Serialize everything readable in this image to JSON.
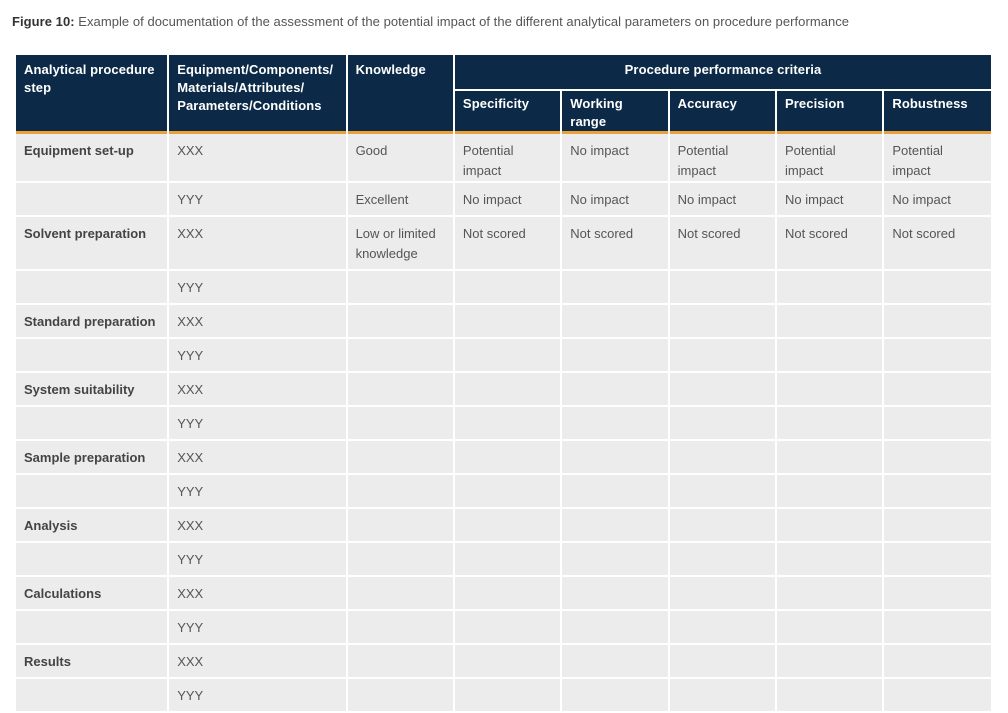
{
  "caption": {
    "lead": "Figure 10:",
    "text": " Example of documentation of the assessment of the potential impact of the different analytical parameters on procedure performance"
  },
  "headers": {
    "step": "Analytical procedure step",
    "equipment": "Equipment/Components/ Materials/Attributes/ Parameters/Conditions",
    "knowledge": "Knowledge",
    "group": "Procedure performance criteria",
    "criteria": [
      "Specificity",
      "Working range",
      "Accuracy",
      "Precision",
      "Robustness"
    ]
  },
  "rows": [
    {
      "step": "Equipment set-up",
      "items": [
        {
          "equip": "XXX",
          "knowledge": "Good",
          "scores": [
            "Potential impact",
            "No impact",
            "Potential impact",
            "Potential impact",
            "Potential impact"
          ]
        },
        {
          "equip": "YYY",
          "knowledge": "Excellent",
          "scores": [
            "No impact",
            "No impact",
            "No impact",
            "No impact",
            "No impact"
          ]
        }
      ]
    },
    {
      "step": "Solvent preparation",
      "items": [
        {
          "equip": "XXX",
          "knowledge": "Low or limited knowledge",
          "scores": [
            "Not scored",
            "Not scored",
            "Not scored",
            "Not scored",
            "Not scored"
          ]
        },
        {
          "equip": "YYY",
          "knowledge": "",
          "scores": [
            "",
            "",
            "",
            "",
            ""
          ]
        }
      ]
    },
    {
      "step": "Standard preparation",
      "items": [
        {
          "equip": "XXX",
          "knowledge": "",
          "scores": [
            "",
            "",
            "",
            "",
            ""
          ]
        },
        {
          "equip": "YYY",
          "knowledge": "",
          "scores": [
            "",
            "",
            "",
            "",
            ""
          ]
        }
      ]
    },
    {
      "step": "System suitability",
      "items": [
        {
          "equip": "XXX",
          "knowledge": "",
          "scores": [
            "",
            "",
            "",
            "",
            ""
          ]
        },
        {
          "equip": "YYY",
          "knowledge": "",
          "scores": [
            "",
            "",
            "",
            "",
            ""
          ]
        }
      ]
    },
    {
      "step": "Sample preparation",
      "items": [
        {
          "equip": "XXX",
          "knowledge": "",
          "scores": [
            "",
            "",
            "",
            "",
            ""
          ]
        },
        {
          "equip": "YYY",
          "knowledge": "",
          "scores": [
            "",
            "",
            "",
            "",
            ""
          ]
        }
      ]
    },
    {
      "step": "Analysis",
      "items": [
        {
          "equip": "XXX",
          "knowledge": "",
          "scores": [
            "",
            "",
            "",
            "",
            ""
          ]
        },
        {
          "equip": "YYY",
          "knowledge": "",
          "scores": [
            "",
            "",
            "",
            "",
            ""
          ]
        }
      ]
    },
    {
      "step": "Calculations",
      "items": [
        {
          "equip": "XXX",
          "knowledge": "",
          "scores": [
            "",
            "",
            "",
            "",
            ""
          ]
        },
        {
          "equip": "YYY",
          "knowledge": "",
          "scores": [
            "",
            "",
            "",
            "",
            ""
          ]
        }
      ]
    },
    {
      "step": "Results",
      "items": [
        {
          "equip": "XXX",
          "knowledge": "",
          "scores": [
            "",
            "",
            "",
            "",
            ""
          ]
        },
        {
          "equip": "YYY",
          "knowledge": "",
          "scores": [
            "",
            "",
            "",
            "",
            ""
          ]
        }
      ]
    }
  ],
  "colors": {
    "header": "#0c2a47",
    "accent": "#e9a23b",
    "cell": "#ececec"
  }
}
